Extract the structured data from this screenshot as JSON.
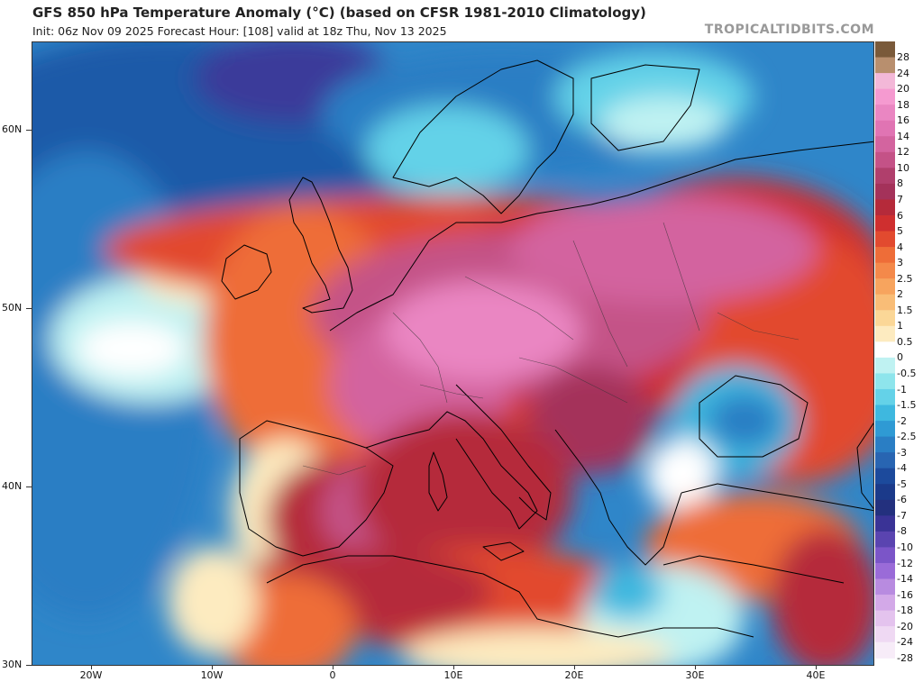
{
  "header": {
    "title": "GFS 850 hPa Temperature Anomaly (°C) (based on CFSR 1981-2010 Climatology)",
    "subtitle": "Init: 06z Nov 09 2025   Forecast Hour: [108]   valid at 18z Thu, Nov 13 2025",
    "brand": "TROPICALTIDBITS.COM"
  },
  "axes": {
    "lat_labels": [
      "60N",
      "50N",
      "40N",
      "30N"
    ],
    "lon_labels": [
      "20W",
      "10W",
      "0",
      "10E",
      "20E",
      "30E",
      "40E"
    ]
  },
  "colorbar": {
    "labels": [
      "28",
      "24",
      "20",
      "18",
      "16",
      "14",
      "12",
      "10",
      "8",
      "7",
      "6",
      "5",
      "4",
      "3",
      "2.5",
      "2",
      "1.5",
      "1",
      "0.5",
      "0",
      "-0.5",
      "-1",
      "-1.5",
      "-2",
      "-2.5",
      "-3",
      "-4",
      "-5",
      "-6",
      "-7",
      "-8",
      "-10",
      "-12",
      "-14",
      "-16",
      "-18",
      "-20",
      "-24",
      "-28"
    ],
    "colors": [
      "#7a5a3a",
      "#b88f6e",
      "#f3b8d8",
      "#f59ad0",
      "#ea86c2",
      "#e074b3",
      "#d3649f",
      "#c45287",
      "#b03f6c",
      "#a4325a",
      "#b52a3a",
      "#cf2f2f",
      "#e24a2f",
      "#ee6d38",
      "#f4894a",
      "#f7a45e",
      "#f9bd77",
      "#fbd797",
      "#fdebc0",
      "#ffffff",
      "#bff2f2",
      "#8ee5ec",
      "#64d2e8",
      "#3eb8df",
      "#2f9ad4",
      "#2a7ec4",
      "#2865b2",
      "#1c4a9c",
      "#1b3a8a",
      "#23307e",
      "#3a3396",
      "#5a44b0",
      "#7b55c8",
      "#9a6bd8",
      "#b88be0",
      "#d3a9e8",
      "#e4c3ee",
      "#efd9f3",
      "#f7ecf8"
    ]
  },
  "map": {
    "region": "Europe / North Africa / Middle East",
    "lat_range": [
      30,
      65
    ],
    "lon_range": [
      -25,
      45
    ]
  }
}
